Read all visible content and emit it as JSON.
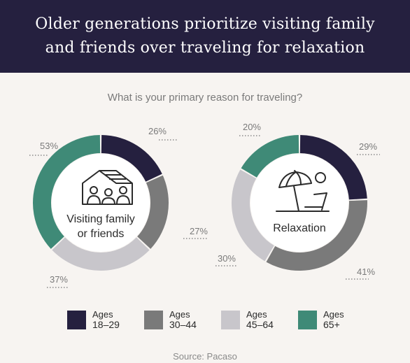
{
  "header": {
    "title_line1": "Older generations prioritize visiting family",
    "title_line2": "and friends over traveling for relaxation"
  },
  "subtitle": "What is your primary reason for traveling?",
  "colors": {
    "18-29": "#25203f",
    "30-44": "#7a7a7a",
    "45-64": "#c8c6cb",
    "65+": "#3f8a77"
  },
  "legend": [
    {
      "line1": "Ages",
      "line2": "18–29",
      "color": "#25203f"
    },
    {
      "line1": "Ages",
      "line2": "30–44",
      "color": "#7a7a7a"
    },
    {
      "line1": "Ages",
      "line2": "45–64",
      "color": "#c8c6cb"
    },
    {
      "line1": "Ages",
      "line2": "65+",
      "color": "#3f8a77"
    }
  ],
  "chart_data": [
    {
      "type": "pie",
      "title": "Visiting family or friends",
      "center_label_lines": [
        "Visiting family",
        "or friends"
      ],
      "icon": "family-house-icon",
      "categories": [
        "Ages 18–29",
        "Ages 30–44",
        "Ages 45–64",
        "Ages 65+"
      ],
      "values": [
        26,
        27,
        37,
        53
      ],
      "labels": [
        "26%",
        "27%",
        "37%",
        "53%"
      ]
    },
    {
      "type": "pie",
      "title": "Relaxation",
      "center_label_lines": [
        "Relaxation"
      ],
      "icon": "beach-umbrella-icon",
      "categories": [
        "Ages 18–29",
        "Ages 30–44",
        "Ages 45–64",
        "Ages 65+"
      ],
      "values": [
        29,
        41,
        30,
        20
      ],
      "labels": [
        "29%",
        "41%",
        "30%",
        "20%"
      ]
    }
  ],
  "source": "Source: Pacaso"
}
